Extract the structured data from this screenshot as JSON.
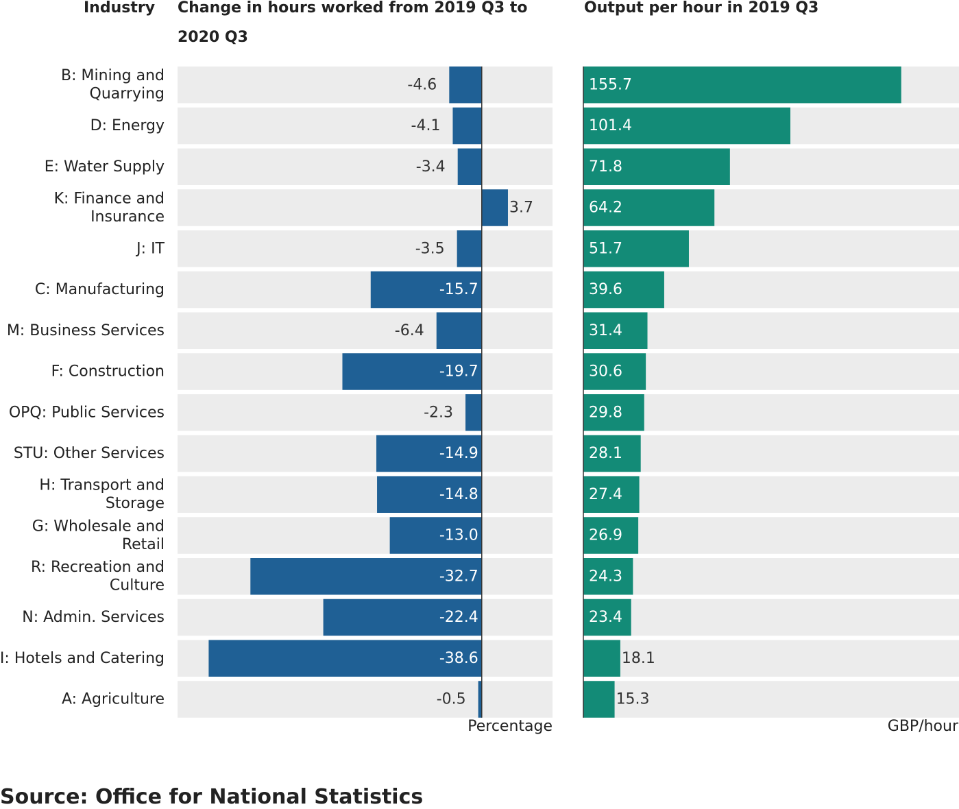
{
  "headers": {
    "industry": "Industry",
    "left": "Change in hours worked from 2019 Q3 to 2020 Q3",
    "right": "Output per hour in 2019 Q3"
  },
  "units": {
    "left": "Percentage",
    "right": "GBP/hour"
  },
  "source": "Source: Office for National Statistics",
  "colors": {
    "left_bar": "#1f6095",
    "right_bar": "#138b77",
    "panel_bg": "#ececec",
    "axis": "#333333"
  },
  "chart_data": [
    {
      "type": "bar",
      "orientation": "horizontal",
      "title": "Change in hours worked from 2019 Q3 to 2020 Q3",
      "xlabel": "Percentage",
      "ylabel": "Industry",
      "xlim": [
        -43,
        10
      ],
      "categories": [
        "B: Mining and Quarrying",
        "D: Energy",
        "E: Water Supply",
        "K: Finance and Insurance",
        "J: IT",
        "C: Manufacturing",
        "M: Business Services",
        "F: Construction",
        "OPQ: Public Services",
        "STU: Other Services",
        "H: Transport and Storage",
        "G: Wholesale and Retail",
        "R: Recreation and Culture",
        "N: Admin. Services",
        "I: Hotels and Catering",
        "A: Agriculture"
      ],
      "values": [
        -4.6,
        -4.1,
        -3.4,
        3.7,
        -3.5,
        -15.7,
        -6.4,
        -19.7,
        -2.3,
        -14.9,
        -14.8,
        -13.0,
        -32.7,
        -22.4,
        -38.6,
        -0.5
      ],
      "labels": [
        "-4.6",
        "-4.1",
        "-3.4",
        "3.7",
        "-3.5",
        "-15.7",
        "-6.4",
        "-19.7",
        "-2.3",
        "-14.9",
        "-14.8",
        "-13.0",
        "-32.7",
        "-22.4",
        "-38.6",
        "-0.5"
      ]
    },
    {
      "type": "bar",
      "orientation": "horizontal",
      "title": "Output per hour in 2019 Q3",
      "xlabel": "GBP/hour",
      "xlim": [
        0,
        184
      ],
      "categories": [
        "B: Mining and Quarrying",
        "D: Energy",
        "E: Water Supply",
        "K: Finance and Insurance",
        "J: IT",
        "C: Manufacturing",
        "M: Business Services",
        "F: Construction",
        "OPQ: Public Services",
        "STU: Other Services",
        "H: Transport and Storage",
        "G: Wholesale and Retail",
        "R: Recreation and Culture",
        "N: Admin. Services",
        "I: Hotels and Catering",
        "A: Agriculture"
      ],
      "values": [
        155.7,
        101.4,
        71.8,
        64.2,
        51.7,
        39.6,
        31.4,
        30.6,
        29.8,
        28.1,
        27.4,
        26.9,
        24.3,
        23.4,
        18.1,
        15.3
      ],
      "labels": [
        "155.7",
        "101.4",
        "71.8",
        "64.2",
        "51.7",
        "39.6",
        "31.4",
        "30.6",
        "29.8",
        "28.1",
        "27.4",
        "26.9",
        "24.3",
        "23.4",
        "18.1",
        "15.3"
      ]
    }
  ],
  "category_lines": [
    [
      "B: Mining and",
      "Quarrying"
    ],
    [
      "D: Energy"
    ],
    [
      "E: Water Supply"
    ],
    [
      "K: Finance and",
      "Insurance"
    ],
    [
      "J: IT"
    ],
    [
      "C: Manufacturing"
    ],
    [
      "M: Business Services"
    ],
    [
      "F: Construction"
    ],
    [
      "OPQ: Public Services"
    ],
    [
      "STU: Other Services"
    ],
    [
      "H: Transport and",
      "Storage"
    ],
    [
      "G: Wholesale and",
      "Retail"
    ],
    [
      "R: Recreation and",
      "Culture"
    ],
    [
      "N: Admin. Services"
    ],
    [
      "I: Hotels and Catering"
    ],
    [
      "A: Agriculture"
    ]
  ]
}
